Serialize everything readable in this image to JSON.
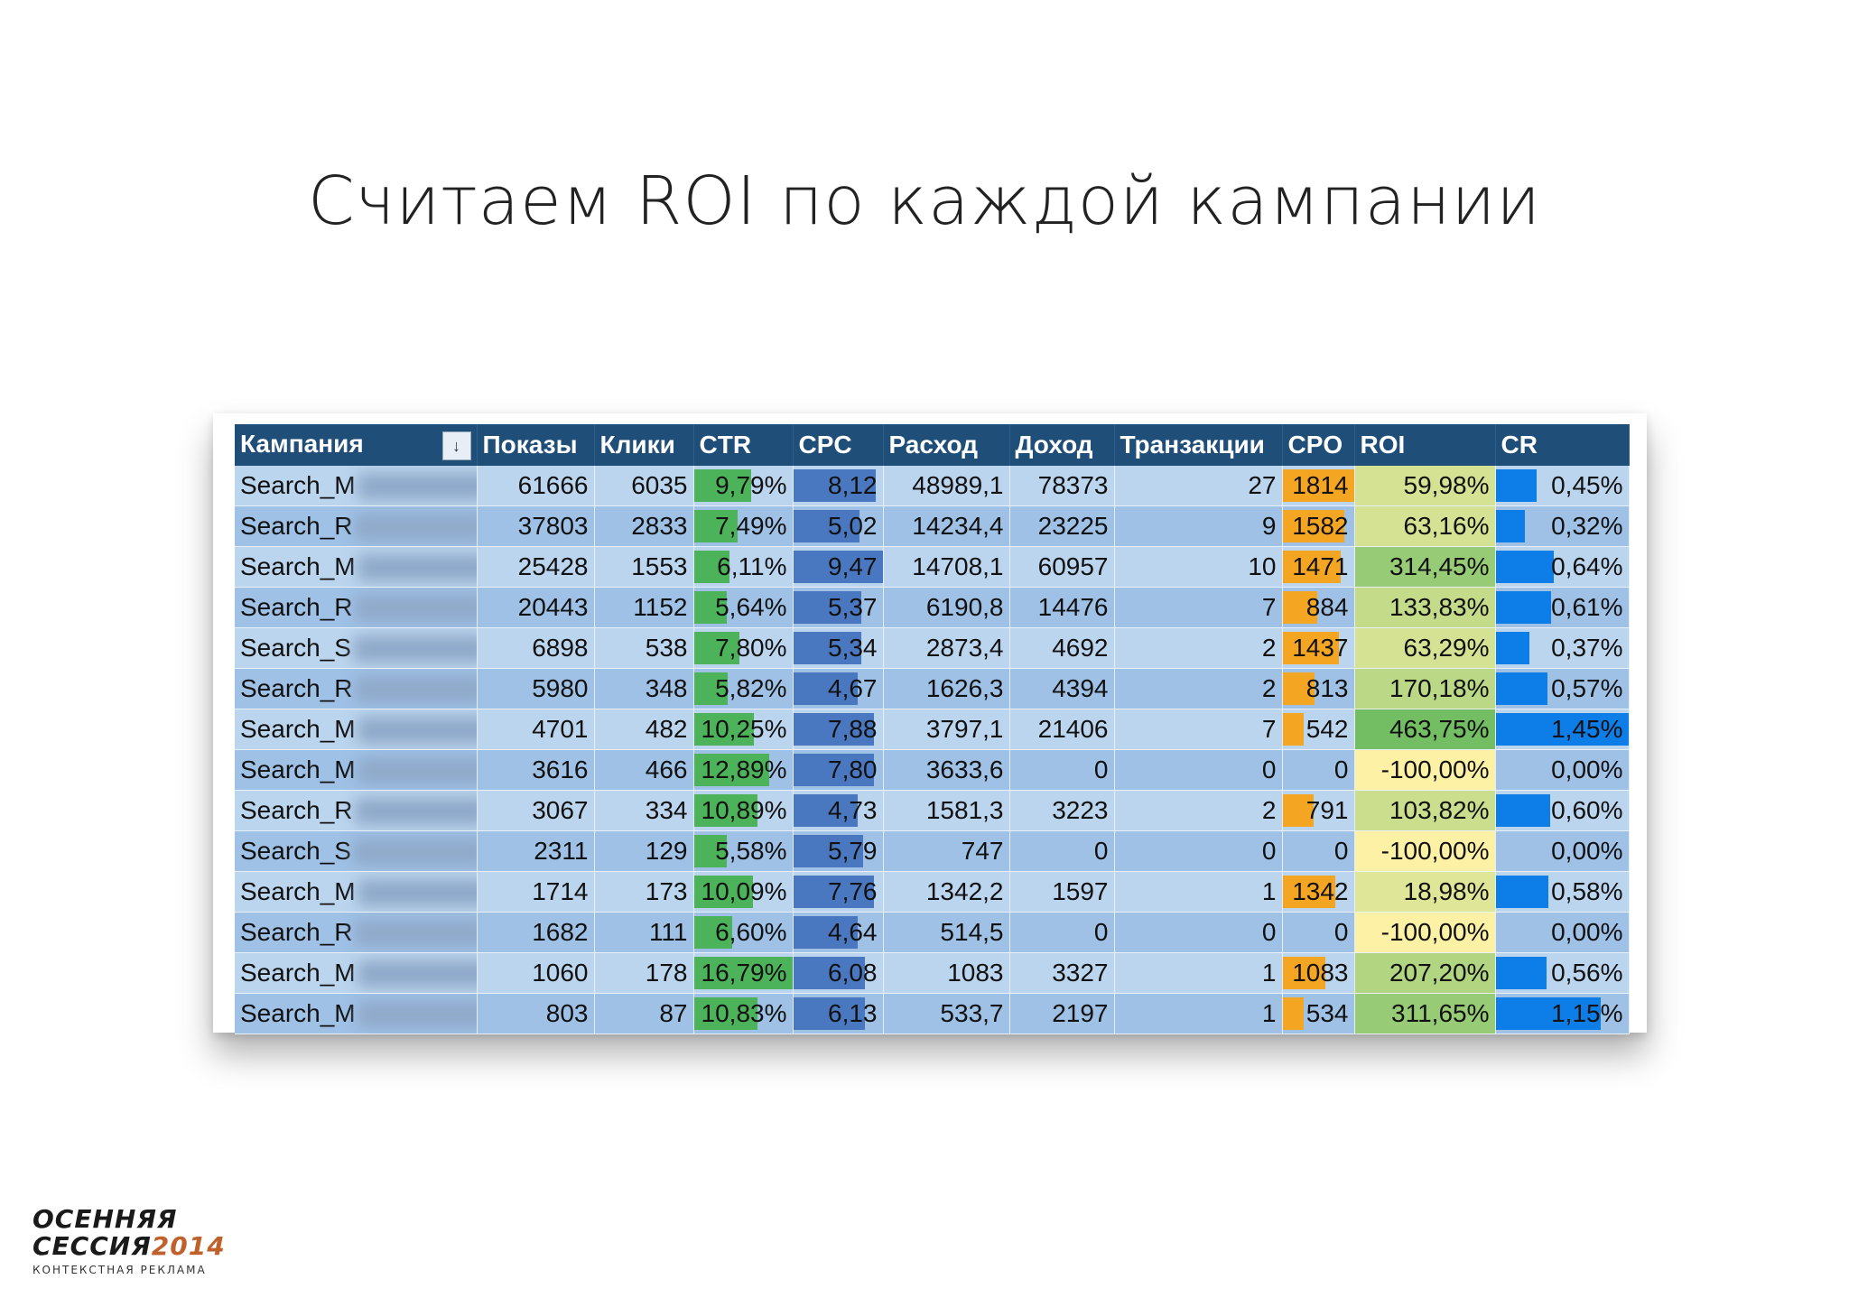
{
  "title": "Считаем ROI по каждой кампании",
  "table": {
    "headers": [
      "Кампания",
      "Показы",
      "Клики",
      "CTR",
      "CPC",
      "Расход",
      "Доход",
      "Транзакции",
      "CPO",
      "ROI",
      "CR"
    ],
    "sort_icon": "sort-filter-icon",
    "rows": [
      {
        "campaign": "Search_M",
        "shows": "61666",
        "clicks": "6035",
        "ctr": "9,79%",
        "cpc": "8,12",
        "spend": "48989,1",
        "income": "78373",
        "trans": "27",
        "cpo": "1814",
        "roi": "59,98%",
        "cr": "0,45%"
      },
      {
        "campaign": "Search_R",
        "shows": "37803",
        "clicks": "2833",
        "ctr": "7,49%",
        "cpc": "5,02",
        "spend": "14234,4",
        "income": "23225",
        "trans": "9",
        "cpo": "1582",
        "roi": "63,16%",
        "cr": "0,32%"
      },
      {
        "campaign": "Search_M",
        "shows": "25428",
        "clicks": "1553",
        "ctr": "6,11%",
        "cpc": "9,47",
        "spend": "14708,1",
        "income": "60957",
        "trans": "10",
        "cpo": "1471",
        "roi": "314,45%",
        "cr": "0,64%"
      },
      {
        "campaign": "Search_R",
        "shows": "20443",
        "clicks": "1152",
        "ctr": "5,64%",
        "cpc": "5,37",
        "spend": "6190,8",
        "income": "14476",
        "trans": "7",
        "cpo": "884",
        "roi": "133,83%",
        "cr": "0,61%"
      },
      {
        "campaign": "Search_S",
        "shows": "6898",
        "clicks": "538",
        "ctr": "7,80%",
        "cpc": "5,34",
        "spend": "2873,4",
        "income": "4692",
        "trans": "2",
        "cpo": "1437",
        "roi": "63,29%",
        "cr": "0,37%"
      },
      {
        "campaign": "Search_R",
        "shows": "5980",
        "clicks": "348",
        "ctr": "5,82%",
        "cpc": "4,67",
        "spend": "1626,3",
        "income": "4394",
        "trans": "2",
        "cpo": "813",
        "roi": "170,18%",
        "cr": "0,57%"
      },
      {
        "campaign": "Search_M",
        "shows": "4701",
        "clicks": "482",
        "ctr": "10,25%",
        "cpc": "7,88",
        "spend": "3797,1",
        "income": "21406",
        "trans": "7",
        "cpo": "542",
        "roi": "463,75%",
        "cr": "1,45%"
      },
      {
        "campaign": "Search_M",
        "shows": "3616",
        "clicks": "466",
        "ctr": "12,89%",
        "cpc": "7,80",
        "spend": "3633,6",
        "income": "0",
        "trans": "0",
        "cpo": "0",
        "roi": "-100,00%",
        "cr": "0,00%"
      },
      {
        "campaign": "Search_R",
        "shows": "3067",
        "clicks": "334",
        "ctr": "10,89%",
        "cpc": "4,73",
        "spend": "1581,3",
        "income": "3223",
        "trans": "2",
        "cpo": "791",
        "roi": "103,82%",
        "cr": "0,60%"
      },
      {
        "campaign": "Search_S",
        "shows": "2311",
        "clicks": "129",
        "ctr": "5,58%",
        "cpc": "5,79",
        "spend": "747",
        "income": "0",
        "trans": "0",
        "cpo": "0",
        "roi": "-100,00%",
        "cr": "0,00%"
      },
      {
        "campaign": "Search_M",
        "shows": "1714",
        "clicks": "173",
        "ctr": "10,09%",
        "cpc": "7,76",
        "spend": "1342,2",
        "income": "1597",
        "trans": "1",
        "cpo": "1342",
        "roi": "18,98%",
        "cr": "0,58%"
      },
      {
        "campaign": "Search_R",
        "shows": "1682",
        "clicks": "111",
        "ctr": "6,60%",
        "cpc": "4,64",
        "spend": "514,5",
        "income": "0",
        "trans": "0",
        "cpo": "0",
        "roi": "-100,00%",
        "cr": "0,00%"
      },
      {
        "campaign": "Search_M",
        "shows": "1060",
        "clicks": "178",
        "ctr": "16,79%",
        "cpc": "6,08",
        "spend": "1083",
        "income": "3327",
        "trans": "1",
        "cpo": "1083",
        "roi": "207,20%",
        "cr": "0,56%"
      },
      {
        "campaign": "Search_M",
        "shows": "803",
        "clicks": "87",
        "ctr": "10,83%",
        "cpc": "6,13",
        "spend": "533,7",
        "income": "2197",
        "trans": "1",
        "cpo": "534",
        "roi": "311,65%",
        "cr": "1,15%"
      }
    ]
  },
  "colors": {
    "header": "#1f4e79",
    "ctr_bar": "#4db35a",
    "cpc_bar": "#4a78c0",
    "cpo_bar": "#f4a623",
    "cr_bar": "#0d7de8",
    "roi_low": "#fdf1a6",
    "roi_high": "#73bd63"
  },
  "logo": {
    "line1": "ОСЕННЯЯ",
    "line2": "СЕССИЯ",
    "year": "2014",
    "line3": "КОНТЕКСТНАЯ РЕКЛАМА"
  }
}
